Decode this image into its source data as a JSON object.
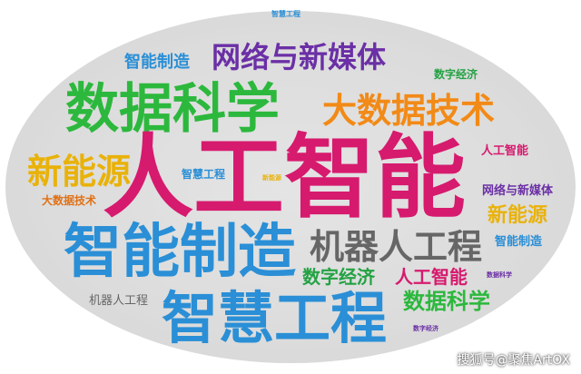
{
  "word_cloud": {
    "words": [
      {
        "text": "智慧工程",
        "color": "#2a8fd6"
      },
      {
        "text": "智能制造",
        "color": "#2a8fd6"
      },
      {
        "text": "网络与新媒体",
        "color": "#6b2fa6"
      },
      {
        "text": "数字经济",
        "color": "#23a243"
      },
      {
        "text": "数据科学",
        "color": "#2cb83d"
      },
      {
        "text": "大数据技术",
        "color": "#f28a17"
      },
      {
        "text": "人工智能",
        "color": "#d61a6e"
      },
      {
        "text": "新能源",
        "color": "#e9b20a"
      },
      {
        "text": "智慧工程",
        "color": "#2a8fd6"
      },
      {
        "text": "新能源",
        "color": "#e9b20a"
      },
      {
        "text": "大数据技术",
        "color": "#e07014"
      },
      {
        "text": "人工智能",
        "color": "#d61a6e"
      },
      {
        "text": "网络与新媒体",
        "color": "#6b2fa6"
      },
      {
        "text": "新能源",
        "color": "#e9b20a"
      },
      {
        "text": "智能制造",
        "color": "#2a8fd6"
      },
      {
        "text": "机器人工程",
        "color": "#666666"
      },
      {
        "text": "智能制造",
        "color": "#2a8fd6"
      },
      {
        "text": "数字经济",
        "color": "#23a243"
      },
      {
        "text": "人工智能",
        "color": "#d61a6e"
      },
      {
        "text": "数据科学",
        "color": "#2cb83d"
      },
      {
        "text": "机器人工程",
        "color": "#666666"
      },
      {
        "text": "数据科学",
        "color": "#6b2fa6"
      },
      {
        "text": "智慧工程",
        "color": "#2a8fd6"
      },
      {
        "text": "数字经济",
        "color": "#6b2fa6"
      }
    ]
  },
  "watermark": {
    "text": "搜狐号@聚焦ArtOX"
  }
}
